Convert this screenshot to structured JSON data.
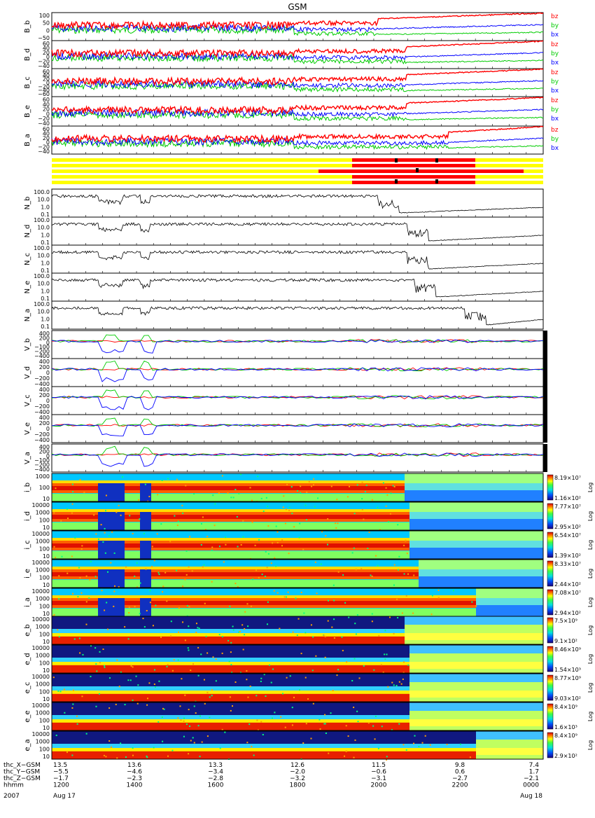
{
  "title": "GSM",
  "colors": {
    "bz": "#ff0000",
    "by": "#00cc00",
    "bx": "#0000ff",
    "line": "#000000",
    "bar_yellow": "#ffff00",
    "bar_red": "#ff0000"
  },
  "b_panels": [
    {
      "label": "B_b",
      "ticks": [
        "100",
        "50",
        "0",
        "−50"
      ],
      "legend": [
        "bz",
        "by",
        "bx"
      ]
    },
    {
      "label": "B_d",
      "ticks": [
        "60",
        "40",
        "20",
        "0",
        "−20",
        "−40"
      ],
      "legend": [
        "bz",
        "by",
        "bx"
      ]
    },
    {
      "label": "B_c",
      "ticks": [
        "60",
        "40",
        "20",
        "0",
        "−20",
        "−40",
        "−60"
      ],
      "legend": [
        "bz",
        "by",
        "bx"
      ]
    },
    {
      "label": "B_e",
      "ticks": [
        "60",
        "40",
        "20",
        "0",
        "−20",
        "−40"
      ],
      "legend": [
        "bz",
        "by",
        "bx"
      ]
    },
    {
      "label": "B_a",
      "ticks": [
        "60",
        "40",
        "20",
        "0",
        "−20",
        "−40"
      ],
      "legend": [
        "bz",
        "by",
        "bx"
      ]
    }
  ],
  "n_panels": [
    {
      "label": "N_b",
      "ticks": [
        "100.0",
        "10.0",
        "1.0",
        "0.1"
      ]
    },
    {
      "label": "N_d",
      "ticks": [
        "100.0",
        "10.0",
        "1.0",
        "0.1"
      ]
    },
    {
      "label": "N_c",
      "ticks": [
        "100.0",
        "10.0",
        "1.0",
        "0.1"
      ]
    },
    {
      "label": "N_e",
      "ticks": [
        "100.0",
        "10.0",
        "1.0",
        "0.1"
      ]
    },
    {
      "label": "N_a",
      "ticks": [
        "100.0",
        "10.0",
        "1.0",
        "0.1"
      ]
    }
  ],
  "v_panels": [
    {
      "label": "V_b",
      "ticks": [
        "400",
        "200",
        "0",
        "−100",
        "−200",
        "−400"
      ]
    },
    {
      "label": "V_d",
      "ticks": [
        "400",
        "200",
        "0",
        "−200",
        "−400"
      ]
    },
    {
      "label": "V_c",
      "ticks": [
        "400",
        "200",
        "0",
        "−200",
        "−400"
      ]
    },
    {
      "label": "V_e",
      "ticks": [
        "400",
        "200",
        "0",
        "−200",
        "−400"
      ]
    },
    {
      "label": "V_a",
      "ticks": [
        "400",
        "200",
        "0",
        "−100",
        "−200",
        "−400"
      ]
    }
  ],
  "spec_panels": [
    {
      "label": "i_b",
      "ticks": [
        "1000",
        "100",
        "10"
      ],
      "cmax": "8.19×10⁷",
      "cmin": "1.16×10²",
      "unit": "Log"
    },
    {
      "label": "i_d",
      "ticks": [
        "10000",
        "1000",
        "100",
        "10"
      ],
      "cmax": "7.77×10⁷",
      "cmin": "2.95×10²",
      "unit": "Log"
    },
    {
      "label": "i_c",
      "ticks": [
        "10000",
        "1000",
        "100",
        "10"
      ],
      "cmax": "6.54×10⁷",
      "cmin": "1.39×10²",
      "unit": "Log"
    },
    {
      "label": "i_e",
      "ticks": [
        "10000",
        "1000",
        "100",
        "10"
      ],
      "cmax": "8.33×10⁷",
      "cmin": "2.44×10²",
      "unit": "Log"
    },
    {
      "label": "i_a",
      "ticks": [
        "10000",
        "1000",
        "100",
        "10"
      ],
      "cmax": "7.08×10⁷",
      "cmin": "2.94×10²",
      "unit": "Log"
    },
    {
      "label": "e_b",
      "ticks": [
        "10000",
        "1000",
        "100",
        "10"
      ],
      "cmax": "7.5×10⁹",
      "cmin": "9.1×10²",
      "unit": "Log"
    },
    {
      "label": "e_d",
      "ticks": [
        "10000",
        "1000",
        "100",
        "10"
      ],
      "cmax": "8.46×10⁹",
      "cmin": "1.54×10³",
      "unit": "Log"
    },
    {
      "label": "e_c",
      "ticks": [
        "10000",
        "1000",
        "100",
        "10"
      ],
      "cmax": "8.77×10⁹",
      "cmin": "9.03×10²",
      "unit": "Log"
    },
    {
      "label": "e_e",
      "ticks": [
        "10000",
        "1000",
        "100",
        "10"
      ],
      "cmax": "8.4×10⁹",
      "cmin": "1.6×10³",
      "unit": "Log"
    },
    {
      "label": "e_a",
      "ticks": [
        "10000",
        "1000",
        "100",
        "10"
      ],
      "cmax": "8.4×10⁹",
      "cmin": "2.9×10²",
      "unit": "Log"
    }
  ],
  "x_axis": {
    "rows": [
      {
        "label": "thc_X−GSM",
        "values": [
          "13.5",
          "13.6",
          "13.3",
          "12.6",
          "11.5",
          "9.8",
          "7.4"
        ]
      },
      {
        "label": "thc_Y−GSM",
        "values": [
          "−5.5",
          "−4.6",
          "−3.4",
          "−2.0",
          "−0.6",
          "0.6",
          "1.7"
        ]
      },
      {
        "label": "thc_Z−GSM",
        "values": [
          "−1.7",
          "−2.3",
          "−2.8",
          "−3.2",
          "−3.1",
          "−2.7",
          "−2.1"
        ]
      },
      {
        "label": "hhmm",
        "values": [
          "1200",
          "1400",
          "1600",
          "1800",
          "2000",
          "2200",
          "0000"
        ]
      }
    ],
    "date_label": "2007",
    "date_left": "Aug 17",
    "date_right": "Aug 18"
  },
  "chart_data": {
    "type": "line",
    "title": "GSM",
    "x": [
      "1200",
      "1400",
      "1600",
      "1800",
      "2000",
      "2200",
      "0000"
    ],
    "series": [
      {
        "name": "bz",
        "values": [
          10,
          10,
          10,
          10,
          20,
          60,
          90
        ]
      },
      {
        "name": "by",
        "values": [
          5,
          5,
          5,
          5,
          0,
          10,
          30
        ]
      },
      {
        "name": "bx",
        "values": [
          0,
          0,
          0,
          -15,
          -10,
          0,
          5
        ]
      }
    ]
  }
}
